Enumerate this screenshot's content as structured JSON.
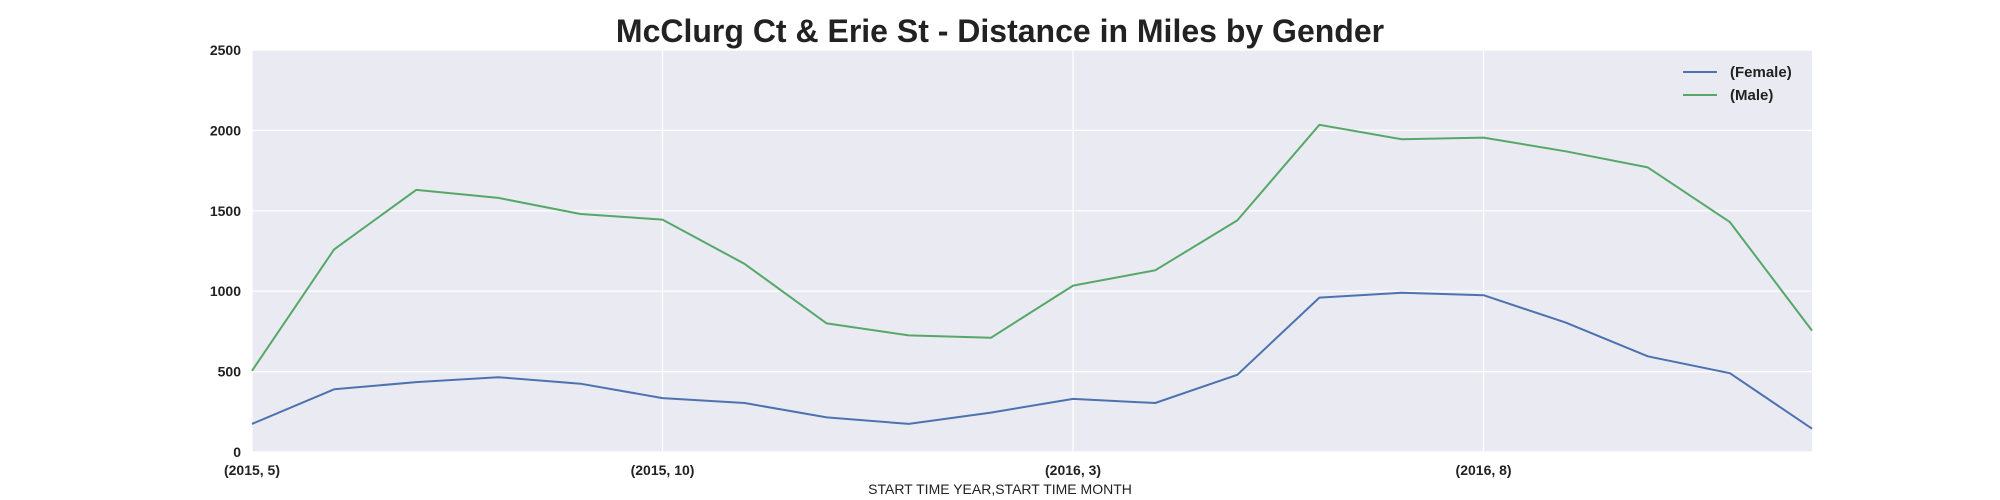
{
  "chart_data": {
    "type": "line",
    "title": "McClurg Ct & Erie St - Distance in Miles by Gender",
    "xlabel": "START TIME YEAR,START TIME MONTH",
    "ylabel": "",
    "categories": [
      "(2015, 5)",
      "(2015, 6)",
      "(2015, 7)",
      "(2015, 8)",
      "(2015, 9)",
      "(2015, 10)",
      "(2015, 11)",
      "(2015, 12)",
      "(2016, 1)",
      "(2016, 2)",
      "(2016, 3)",
      "(2016, 4)",
      "(2016, 5)",
      "(2016, 6)",
      "(2016, 7)",
      "(2016, 8)",
      "(2016, 9)",
      "(2016, 10)",
      "(2016, 11)",
      "(2016, 12)"
    ],
    "x_tick_labels": [
      "(2015, 5)",
      "(2015, 10)",
      "(2016, 3)",
      "(2016, 8)"
    ],
    "x_tick_indices": [
      0,
      5,
      10,
      15
    ],
    "ylim": [
      0,
      2500
    ],
    "y_ticks": [
      0,
      500,
      1000,
      1500,
      2000,
      2500
    ],
    "grid": true,
    "legend_position": "top-right",
    "series": [
      {
        "name": "(Female)",
        "color": "#4c72b0",
        "values": [
          175,
          390,
          435,
          465,
          425,
          335,
          305,
          215,
          175,
          245,
          330,
          305,
          480,
          960,
          990,
          975,
          805,
          595,
          490,
          145
        ]
      },
      {
        "name": "(Male)",
        "color": "#55a868",
        "values": [
          505,
          1260,
          1630,
          1580,
          1480,
          1445,
          1170,
          800,
          725,
          710,
          1035,
          1130,
          1440,
          2035,
          1945,
          1955,
          1870,
          1770,
          1430,
          755
        ]
      }
    ],
    "colors": {
      "plot_background": "#eaeaf2",
      "grid": "#ffffff",
      "text": "#222222"
    }
  }
}
